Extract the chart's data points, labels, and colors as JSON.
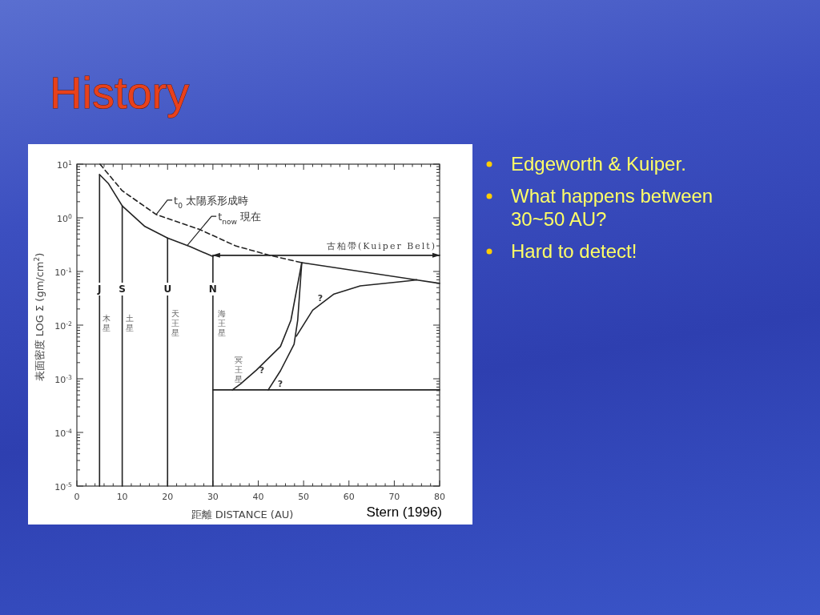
{
  "chart_data": {
    "type": "line",
    "title": "History",
    "xlabel": "距離 DISTANCE (AU)",
    "ylabel": "表面密度 LOG Σ (gm/cm$^{2}$)",
    "log": "y",
    "xlim": [
      0,
      80
    ],
    "ylim": [
      1e-05,
      10
    ],
    "xticks": [
      0,
      10,
      20,
      30,
      40,
      50,
      60,
      70,
      80
    ],
    "yticks": [
      {
        "value": 10,
        "label": "10$^{1}$"
      },
      {
        "value": 1,
        "label": "10$^{0}$"
      },
      {
        "value": 0.1,
        "label": "10$^{-1}$"
      },
      {
        "value": 0.01,
        "label": "10$^{-2}$"
      },
      {
        "value": 0.001,
        "label": "10$^{-3}$"
      },
      {
        "value": 0.0001,
        "label": "10$^{-4}$"
      },
      {
        "value": 1e-05,
        "label": "10$^{-5}$"
      }
    ],
    "series": [
      {
        "color": "#222222",
        "line_style": "solid",
        "x": [
          5,
          7,
          10,
          15,
          20,
          25,
          30
        ],
        "values": [
          6.4,
          4.3,
          1.67,
          0.69,
          0.42,
          0.29,
          0.19
        ]
      },
      {
        "color": "#222222",
        "line_style": "dashed",
        "x": [
          5.1,
          10,
          17.5,
          27.2,
          35,
          42.5,
          49.6
        ],
        "values": [
          10,
          3.2,
          1.15,
          0.6,
          0.3,
          0.2,
          0.146
        ]
      },
      {
        "name": "J",
        "color": "#222222",
        "line_style": "solid",
        "x": [
          5,
          5
        ],
        "values": [
          6.4,
          1e-05
        ]
      },
      {
        "name": "S",
        "color": "#222222",
        "line_style": "solid",
        "x": [
          10,
          10
        ],
        "values": [
          1.67,
          1e-05
        ]
      },
      {
        "name": "U",
        "color": "#222222",
        "line_style": "solid",
        "x": [
          20,
          20
        ],
        "values": [
          0.42,
          1e-05
        ]
      },
      {
        "name": "N",
        "color": "#222222",
        "line_style": "solid",
        "x": [
          30,
          30
        ],
        "values": [
          0.19,
          1e-05
        ]
      },
      {
        "name": "古柏帶(Kuiper Belt)",
        "color": "#222222",
        "line_style": "solid",
        "x": [
          30,
          80
        ],
        "values": [
          0.2,
          0.2
        ]
      },
      {
        "color": "#222222",
        "line_style": "solid",
        "x": [
          49.6,
          80
        ],
        "values": [
          0.146,
          0.06
        ]
      },
      {
        "color": "#222222",
        "line_style": "solid",
        "x": [
          30,
          80
        ],
        "values": [
          0.00062,
          0.00062
        ]
      },
      {
        "color": "#222222",
        "line_style": "solid",
        "x": [
          34.3,
          36,
          39.6,
          44.9,
          47.2,
          49.6
        ],
        "values": [
          0.00062,
          0.00079,
          0.00145,
          0.004,
          0.0123,
          0.146
        ]
      },
      {
        "color": "#222222",
        "line_style": "solid",
        "x": [
          42.2,
          44.9,
          47.9,
          48.7,
          49.6
        ],
        "values": [
          0.00062,
          0.00141,
          0.0044,
          0.0123,
          0.146
        ]
      },
      {
        "color": "#222222",
        "line_style": "solid",
        "x": [
          48.4,
          52,
          56.7,
          62.5,
          71.9,
          75
        ],
        "values": [
          0.0062,
          0.019,
          0.038,
          0.054,
          0.065,
          0.07
        ]
      }
    ],
    "annotations": [
      {
        "text": "t$_{0}$ 太陽系形成時",
        "x": 17.5,
        "y": 1.15
      },
      {
        "text": "t$_{now}$ 現在",
        "x": 24.4,
        "y": 0.31
      },
      "?",
      "?",
      "?",
      "木星",
      "土星",
      "天王星",
      "海王星",
      "冥王星",
      "Edgeworth & Kuiper.",
      "What happens between 30~50 AU?",
      "Hard to detect!",
      "Stern (1996)"
    ]
  }
}
